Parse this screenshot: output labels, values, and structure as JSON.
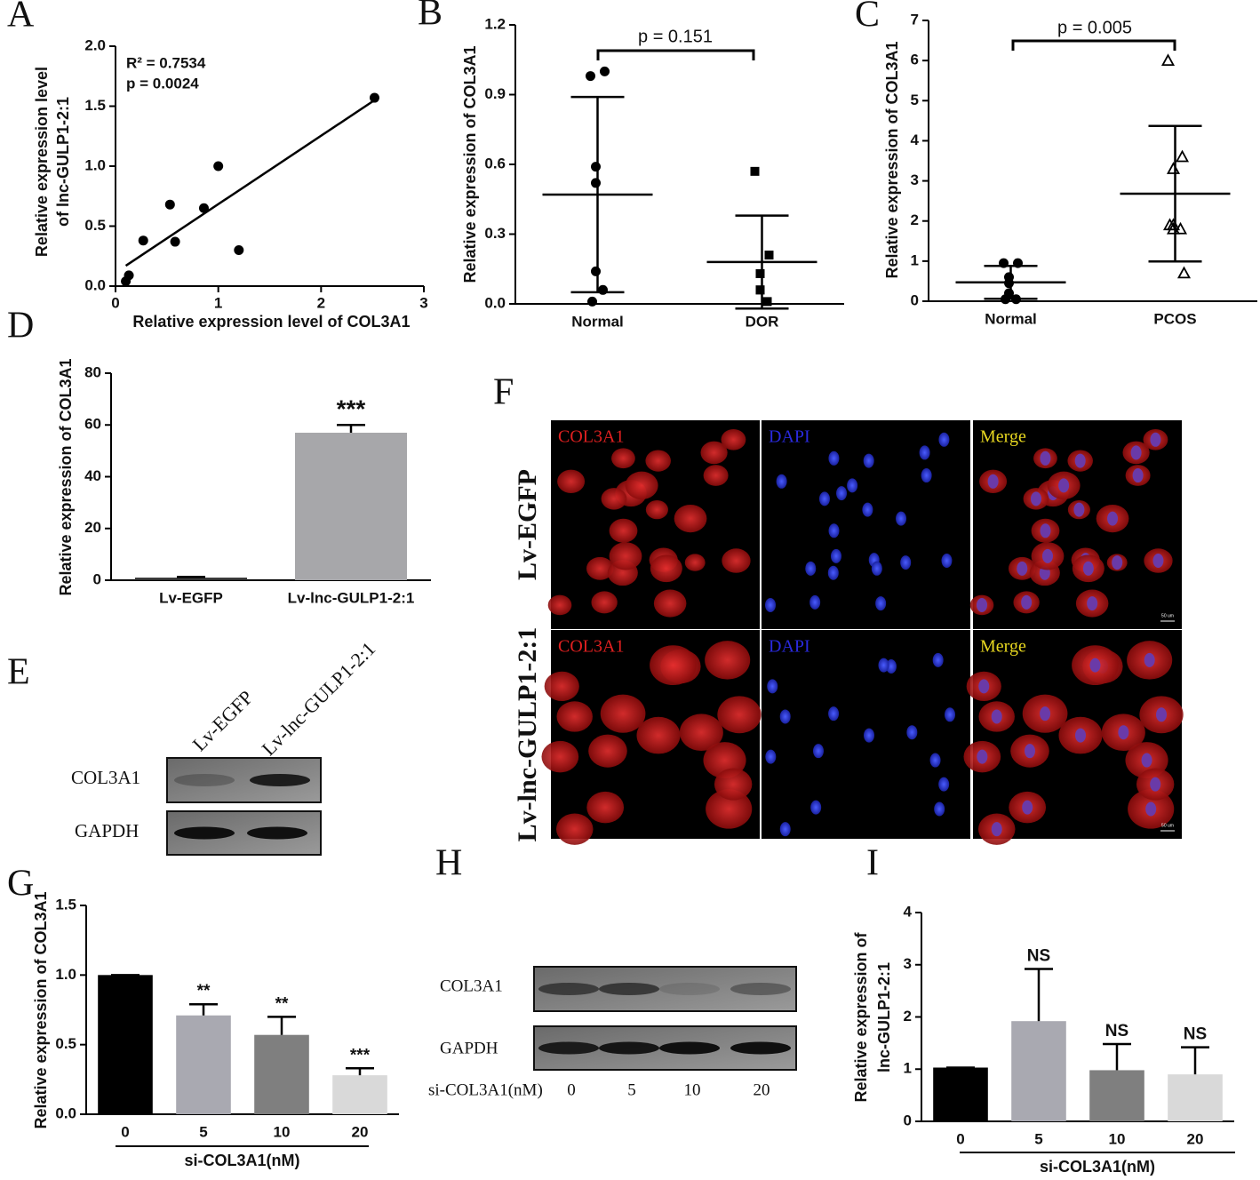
{
  "chart_data": [
    {
      "type": "scatter",
      "panel": "A",
      "x_label": "Relative expression level of COL3A1",
      "y_label": [
        "Relative expression level",
        "of lnc-GULP1-2:1"
      ],
      "x": [
        0.1,
        0.13,
        0.27,
        0.53,
        0.58,
        0.86,
        1.0,
        1.2,
        2.52
      ],
      "y": [
        0.04,
        0.09,
        0.38,
        0.68,
        0.37,
        0.65,
        1.0,
        0.3,
        1.57
      ],
      "fit_line": {
        "x": [
          0.1,
          2.52
        ],
        "y": [
          0.17,
          1.55
        ]
      },
      "annotations": [
        "R² = 0.7534",
        "p = 0.0024"
      ],
      "color": "#000000",
      "xlim": [
        0,
        3
      ],
      "xticks": [
        0,
        1,
        2,
        3
      ],
      "ylim": [
        0,
        2.0
      ],
      "yticks": [
        {
          "value": 0,
          "label": "0.0"
        },
        {
          "value": 0.5,
          "label": "0.5"
        },
        {
          "value": 1.0,
          "label": "1.0"
        },
        {
          "value": 1.5,
          "label": "1.5"
        },
        {
          "value": 2.0,
          "label": "2.0"
        }
      ]
    },
    {
      "type": "dotplot",
      "panel": "B",
      "y_label": "Relative expression of COL3A1",
      "categories": [
        "Normal",
        "DOR"
      ],
      "groups": [
        {
          "values": [
            0.98,
            1.0,
            0.59,
            0.52,
            0.14,
            0.06,
            0.01
          ],
          "mean": 0.47,
          "sd": 0.42,
          "marker": "circle"
        },
        {
          "values": [
            0.57,
            0.21,
            0.13,
            0.06,
            0.06,
            0.01
          ],
          "mean": 0.18,
          "sd": 0.2,
          "marker": "square"
        }
      ],
      "annotations": [
        "p = 0.151"
      ],
      "color": "#000000",
      "ylim": [
        0,
        1.2
      ],
      "yticks": [
        {
          "value": 0,
          "label": "0.0"
        },
        {
          "value": 0.3,
          "label": "0.3"
        },
        {
          "value": 0.6,
          "label": "0.6"
        },
        {
          "value": 0.9,
          "label": "0.9"
        },
        {
          "value": 1.2,
          "label": "1.2"
        }
      ]
    },
    {
      "type": "dotplot",
      "panel": "C",
      "y_label": "Relative expression of COL3A1",
      "categories": [
        "Normal",
        "PCOS"
      ],
      "groups": [
        {
          "values": [
            0.95,
            0.95,
            0.6,
            0.45,
            0.2,
            0.05,
            0.05
          ],
          "mean": 0.47,
          "sd": 0.41,
          "marker": "circle"
        },
        {
          "values": [
            6.0,
            3.6,
            3.3,
            1.9,
            1.8,
            1.8,
            1.9,
            0.7
          ],
          "mean": 2.68,
          "sd": 1.69,
          "marker": "triangle-open"
        }
      ],
      "annotations": [
        "p = 0.005"
      ],
      "color": "#000000",
      "ylim": [
        0,
        7
      ],
      "yticks": [
        0,
        1,
        2,
        3,
        4,
        5,
        6,
        7
      ]
    },
    {
      "type": "bar",
      "panel": "D",
      "y_label": "Relative expression of COL3A1",
      "categories": [
        "Lv-EGFP",
        "Lv-lnc-GULP1-2:1"
      ],
      "values": [
        1,
        57
      ],
      "errors": [
        0.3,
        3
      ],
      "significance": [
        null,
        "***"
      ],
      "colors": [
        "#333333",
        "#a7a7aa"
      ],
      "ylim": [
        0,
        80
      ],
      "yticks": [
        0,
        20,
        40,
        60,
        80
      ]
    },
    {
      "type": "bar",
      "panel": "G",
      "y_label": "Relative expression of COL3A1",
      "x_label": "si-COL3A1(nM)",
      "categories": [
        "0",
        "5",
        "10",
        "20"
      ],
      "values": [
        1.0,
        0.71,
        0.57,
        0.28
      ],
      "errors": [
        0,
        0.08,
        0.13,
        0.05
      ],
      "significance": [
        null,
        "**",
        "**",
        "***"
      ],
      "colors": [
        "#000000",
        "#a9a9b1",
        "#7f7f7f",
        "#d9d9d9"
      ],
      "ylim": [
        0,
        1.5
      ],
      "yticks": [
        {
          "value": 0,
          "label": "0.0"
        },
        {
          "value": 0.5,
          "label": "0.5"
        },
        {
          "value": 1.0,
          "label": "1.0"
        },
        {
          "value": 1.5,
          "label": "1.5"
        }
      ]
    },
    {
      "type": "bar",
      "panel": "I",
      "y_label": [
        "Relative expression of",
        "lnc-GULP1-2:1"
      ],
      "x_label": "si-COL3A1(nM)",
      "categories": [
        "0",
        "5",
        "10",
        "20"
      ],
      "values": [
        1.03,
        1.92,
        0.98,
        0.9
      ],
      "errors": [
        0,
        1.0,
        0.5,
        0.52
      ],
      "significance": [
        null,
        "NS",
        "NS",
        "NS"
      ],
      "colors": [
        "#000000",
        "#a9a9b1",
        "#7f7f7f",
        "#d9d9d9"
      ],
      "ylim": [
        0,
        4
      ],
      "yticks": [
        0,
        1,
        2,
        3,
        4
      ]
    }
  ],
  "panels": {
    "E": {
      "label": "E",
      "lanes": [
        "Lv-EGFP",
        "Lv-lnc-GULP1-2:1"
      ],
      "rows": [
        "COL3A1",
        "GAPDH"
      ]
    },
    "F": {
      "label": "F",
      "rows": [
        "Lv-EGFP",
        "Lv-lnc-GULP1-2:1"
      ],
      "channels": [
        "COL3A1",
        "DAPI",
        "Merge"
      ],
      "scale_bar": "50 um"
    },
    "H": {
      "label": "H",
      "rows": [
        "COL3A1",
        "GAPDH"
      ],
      "lane_title": "si-COL3A1(nM)",
      "lanes": [
        "0",
        "5",
        "10",
        "20"
      ]
    }
  }
}
